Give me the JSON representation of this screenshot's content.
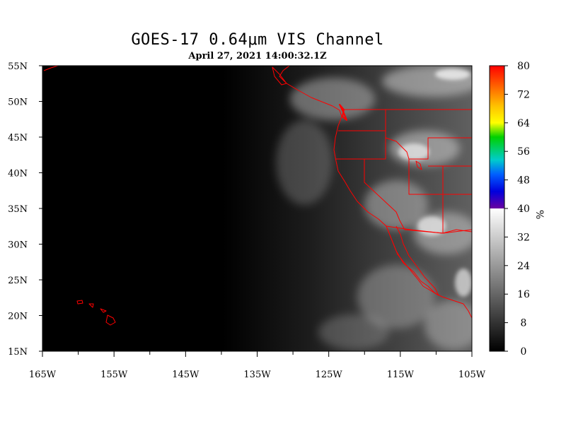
{
  "header": {
    "title": "GOES-17  0.64μm VIS Channel",
    "subtitle": "April 27,  2021 14:00:32.1Z"
  },
  "map": {
    "lon_range": [
      -165,
      -105
    ],
    "lat_range": [
      15,
      55
    ],
    "lon_ticks": [
      {
        "value": -165,
        "label": "165W"
      },
      {
        "value": -155,
        "label": "155W"
      },
      {
        "value": -145,
        "label": "145W"
      },
      {
        "value": -135,
        "label": "135W"
      },
      {
        "value": -125,
        "label": "125W"
      },
      {
        "value": -115,
        "label": "115W"
      },
      {
        "value": -105,
        "label": "105W"
      }
    ],
    "lat_ticks": [
      {
        "value": 55,
        "label": "55N"
      },
      {
        "value": 50,
        "label": "50N"
      },
      {
        "value": 45,
        "label": "45N"
      },
      {
        "value": 40,
        "label": "40N"
      },
      {
        "value": 35,
        "label": "35N"
      },
      {
        "value": 30,
        "label": "30N"
      },
      {
        "value": 25,
        "label": "25N"
      },
      {
        "value": 20,
        "label": "20N"
      },
      {
        "value": 15,
        "label": "15N"
      }
    ],
    "background": "#000000",
    "border_color": "#ff0000"
  },
  "colorbar": {
    "ticks": [
      "80",
      "72",
      "64",
      "56",
      "48",
      "40",
      "32",
      "24",
      "16",
      "8",
      "0"
    ],
    "unit": "%",
    "colors": [
      "#ff0000",
      "#ff8000",
      "#ffff00",
      "#00cc00",
      "#00ffff",
      "#0000ff",
      "#6600aa",
      "#ffffff",
      "#000000"
    ]
  }
}
